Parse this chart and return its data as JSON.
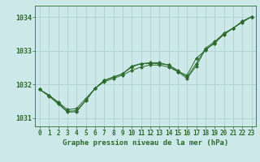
{
  "title": "Graphe pression niveau de la mer (hPa)",
  "background_color": "#cce8e8",
  "grid_color": "#aacccc",
  "line_color": "#2d6a2d",
  "marker_color": "#2d6a2d",
  "xlim": [
    -0.5,
    23.5
  ],
  "ylim": [
    1030.75,
    1034.35
  ],
  "yticks": [
    1031,
    1032,
    1033,
    1034
  ],
  "xticks": [
    0,
    1,
    2,
    3,
    4,
    5,
    6,
    7,
    8,
    9,
    10,
    11,
    12,
    13,
    14,
    15,
    16,
    17,
    18,
    19,
    20,
    21,
    22,
    23
  ],
  "series1": [
    1031.85,
    1031.68,
    1031.48,
    1031.25,
    1031.28,
    1031.58,
    1031.88,
    1032.08,
    1032.18,
    1032.28,
    1032.42,
    1032.52,
    1032.58,
    1032.58,
    1032.52,
    1032.38,
    1032.28,
    1032.78,
    1033.02,
    1033.25,
    1033.48,
    1033.68,
    1033.85,
    1034.02
  ],
  "series2": [
    1031.85,
    1031.68,
    1031.45,
    1031.2,
    1031.22,
    1031.52,
    1031.88,
    1032.12,
    1032.22,
    1032.32,
    1032.52,
    1032.62,
    1032.62,
    1032.62,
    1032.58,
    1032.42,
    1032.22,
    1032.62,
    1033.08,
    1033.28,
    1033.52,
    1033.68,
    1033.88,
    1034.02
  ],
  "series3": [
    1031.85,
    1031.65,
    1031.42,
    1031.18,
    1031.18,
    1031.52,
    1031.88,
    1032.12,
    1032.22,
    1032.32,
    1032.55,
    1032.62,
    1032.65,
    1032.65,
    1032.58,
    1032.38,
    1032.18,
    1032.55,
    1033.05,
    1033.22,
    1033.52,
    1033.68,
    1033.88,
    1034.02
  ]
}
